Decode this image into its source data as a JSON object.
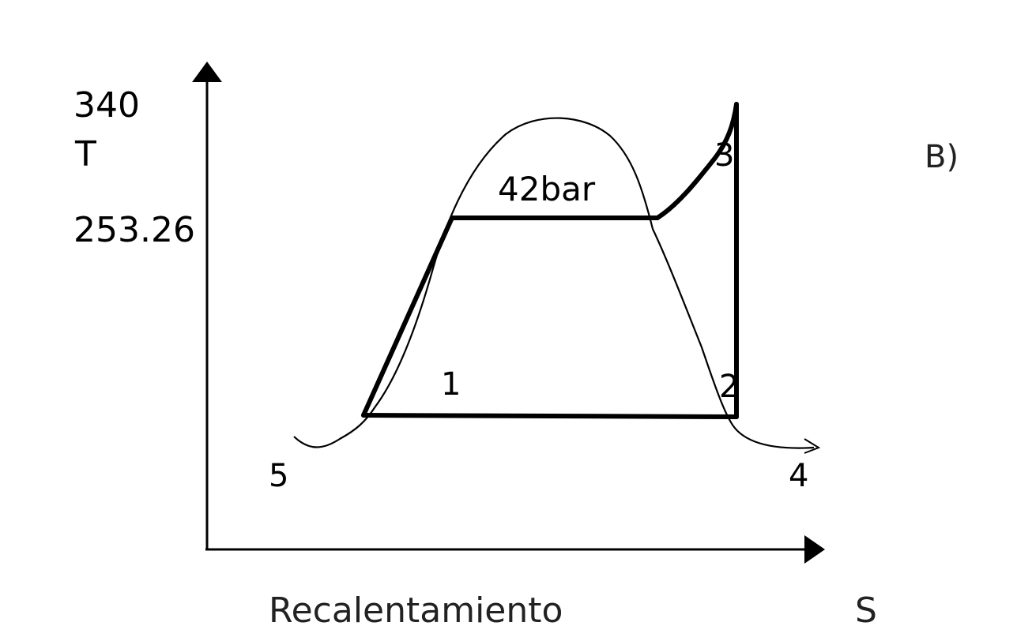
{
  "diagram": {
    "y_axis_value_top": "340",
    "y_axis_label": "T",
    "y_axis_value_mid": "253.26",
    "x_axis_label": "S",
    "caption": "Recalentamiento",
    "panel_label": "B)",
    "pressure_label": "42bar",
    "points": {
      "p1": "1",
      "p2": "2",
      "p3": "3",
      "p4": "4",
      "p5": "5"
    },
    "colors": {
      "ink": "#000000",
      "background": "#ffffff"
    }
  }
}
